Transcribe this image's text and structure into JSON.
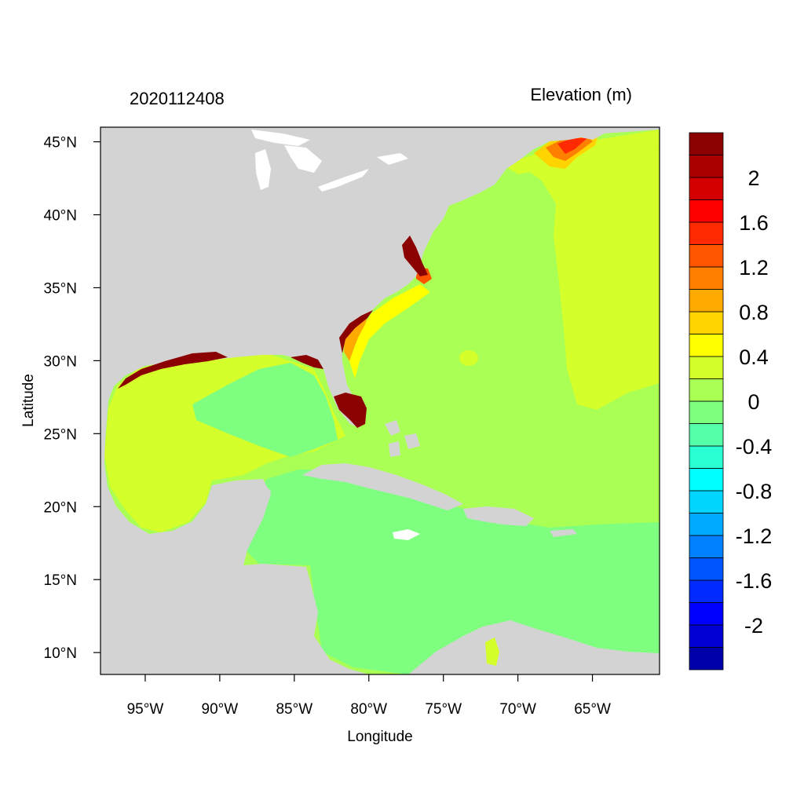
{
  "map": {
    "date_label": "2020112408",
    "variable_label": "Elevation (m)",
    "xlabel": "Longitude",
    "ylabel": "Latitude",
    "lon_range": [
      -98,
      -60.5
    ],
    "lat_range": [
      8.5,
      46
    ],
    "x_ticks": [
      {
        "value": -95,
        "label": "95°W"
      },
      {
        "value": -90,
        "label": "90°W"
      },
      {
        "value": -85,
        "label": "85°W"
      },
      {
        "value": -80,
        "label": "80°W"
      },
      {
        "value": -75,
        "label": "75°W"
      },
      {
        "value": -70,
        "label": "70°W"
      },
      {
        "value": -65,
        "label": "65°W"
      }
    ],
    "y_ticks": [
      {
        "value": 45,
        "label": "45°N"
      },
      {
        "value": 40,
        "label": "40°N"
      },
      {
        "value": 35,
        "label": "35°N"
      },
      {
        "value": 30,
        "label": "30°N"
      },
      {
        "value": 25,
        "label": "25°N"
      },
      {
        "value": 20,
        "label": "20°N"
      },
      {
        "value": 15,
        "label": "15°N"
      },
      {
        "value": 10,
        "label": "10°N"
      }
    ],
    "colors": {
      "land": "#d3d3d3",
      "lake": "#ffffff",
      "level_m0_2": "#7fff7f",
      "level_0_0_2": "#aaff55",
      "level_0_2_0_4": "#d4ff2a",
      "level_0_4_0_6": "#ffff00",
      "level_high": "#8b0000"
    },
    "colorbar": {
      "levels_colors": [
        "#0000aa",
        "#0000d4",
        "#0000ff",
        "#002aff",
        "#0055ff",
        "#007fff",
        "#00aaff",
        "#00d4ff",
        "#00ffff",
        "#2affd4",
        "#55ffaa",
        "#7fff7f",
        "#aaff55",
        "#d4ff2a",
        "#ffff00",
        "#ffd400",
        "#ffaa00",
        "#ff7f00",
        "#ff5500",
        "#ff2a00",
        "#ff0000",
        "#d40000",
        "#aa0000",
        "#8b0000"
      ],
      "tick_labels": [
        "2",
        "1.6",
        "1.2",
        "0.8",
        "0.4",
        "0",
        "-0.4",
        "-0.8",
        "-1.2",
        "-1.6",
        "-2"
      ]
    }
  }
}
